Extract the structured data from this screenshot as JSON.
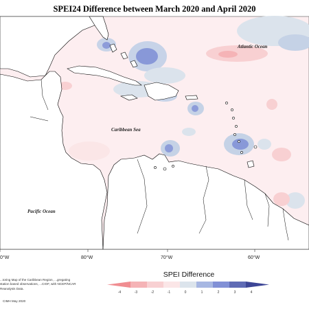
{
  "title": "SPEI24 Difference between March 2020 and April 2020",
  "ocean_labels": {
    "atlantic": "Atlantic Ocean",
    "caribbean": "Caribbean Sea",
    "pacific": "Pacific Ocean"
  },
  "longitude_labels": [
    "0°W",
    "80°W",
    "70°W",
    "60°W"
  ],
  "legend": {
    "title": "SPEI Difference",
    "ticks": [
      "-4",
      "-3",
      "-2",
      "-1",
      "0",
      "1",
      "2",
      "3",
      "4"
    ],
    "colors": [
      "#f08d91",
      "#f5b3b6",
      "#f8d0d2",
      "#fbe6e7",
      "#dce4ec",
      "#a7b7e2",
      "#8190d6",
      "#5f6bb5",
      "#3d4696"
    ]
  },
  "colors": {
    "land": "#ffffff",
    "ocean_background": "#fdeef0",
    "coastline": "#000000"
  },
  "source_note": "...toring Map of the Caribbean Region, ...gregating station based observations, ...CIOF, with NCEP/NCAR Reanalysis Data.",
  "copyright": "CIMH May 2020"
}
